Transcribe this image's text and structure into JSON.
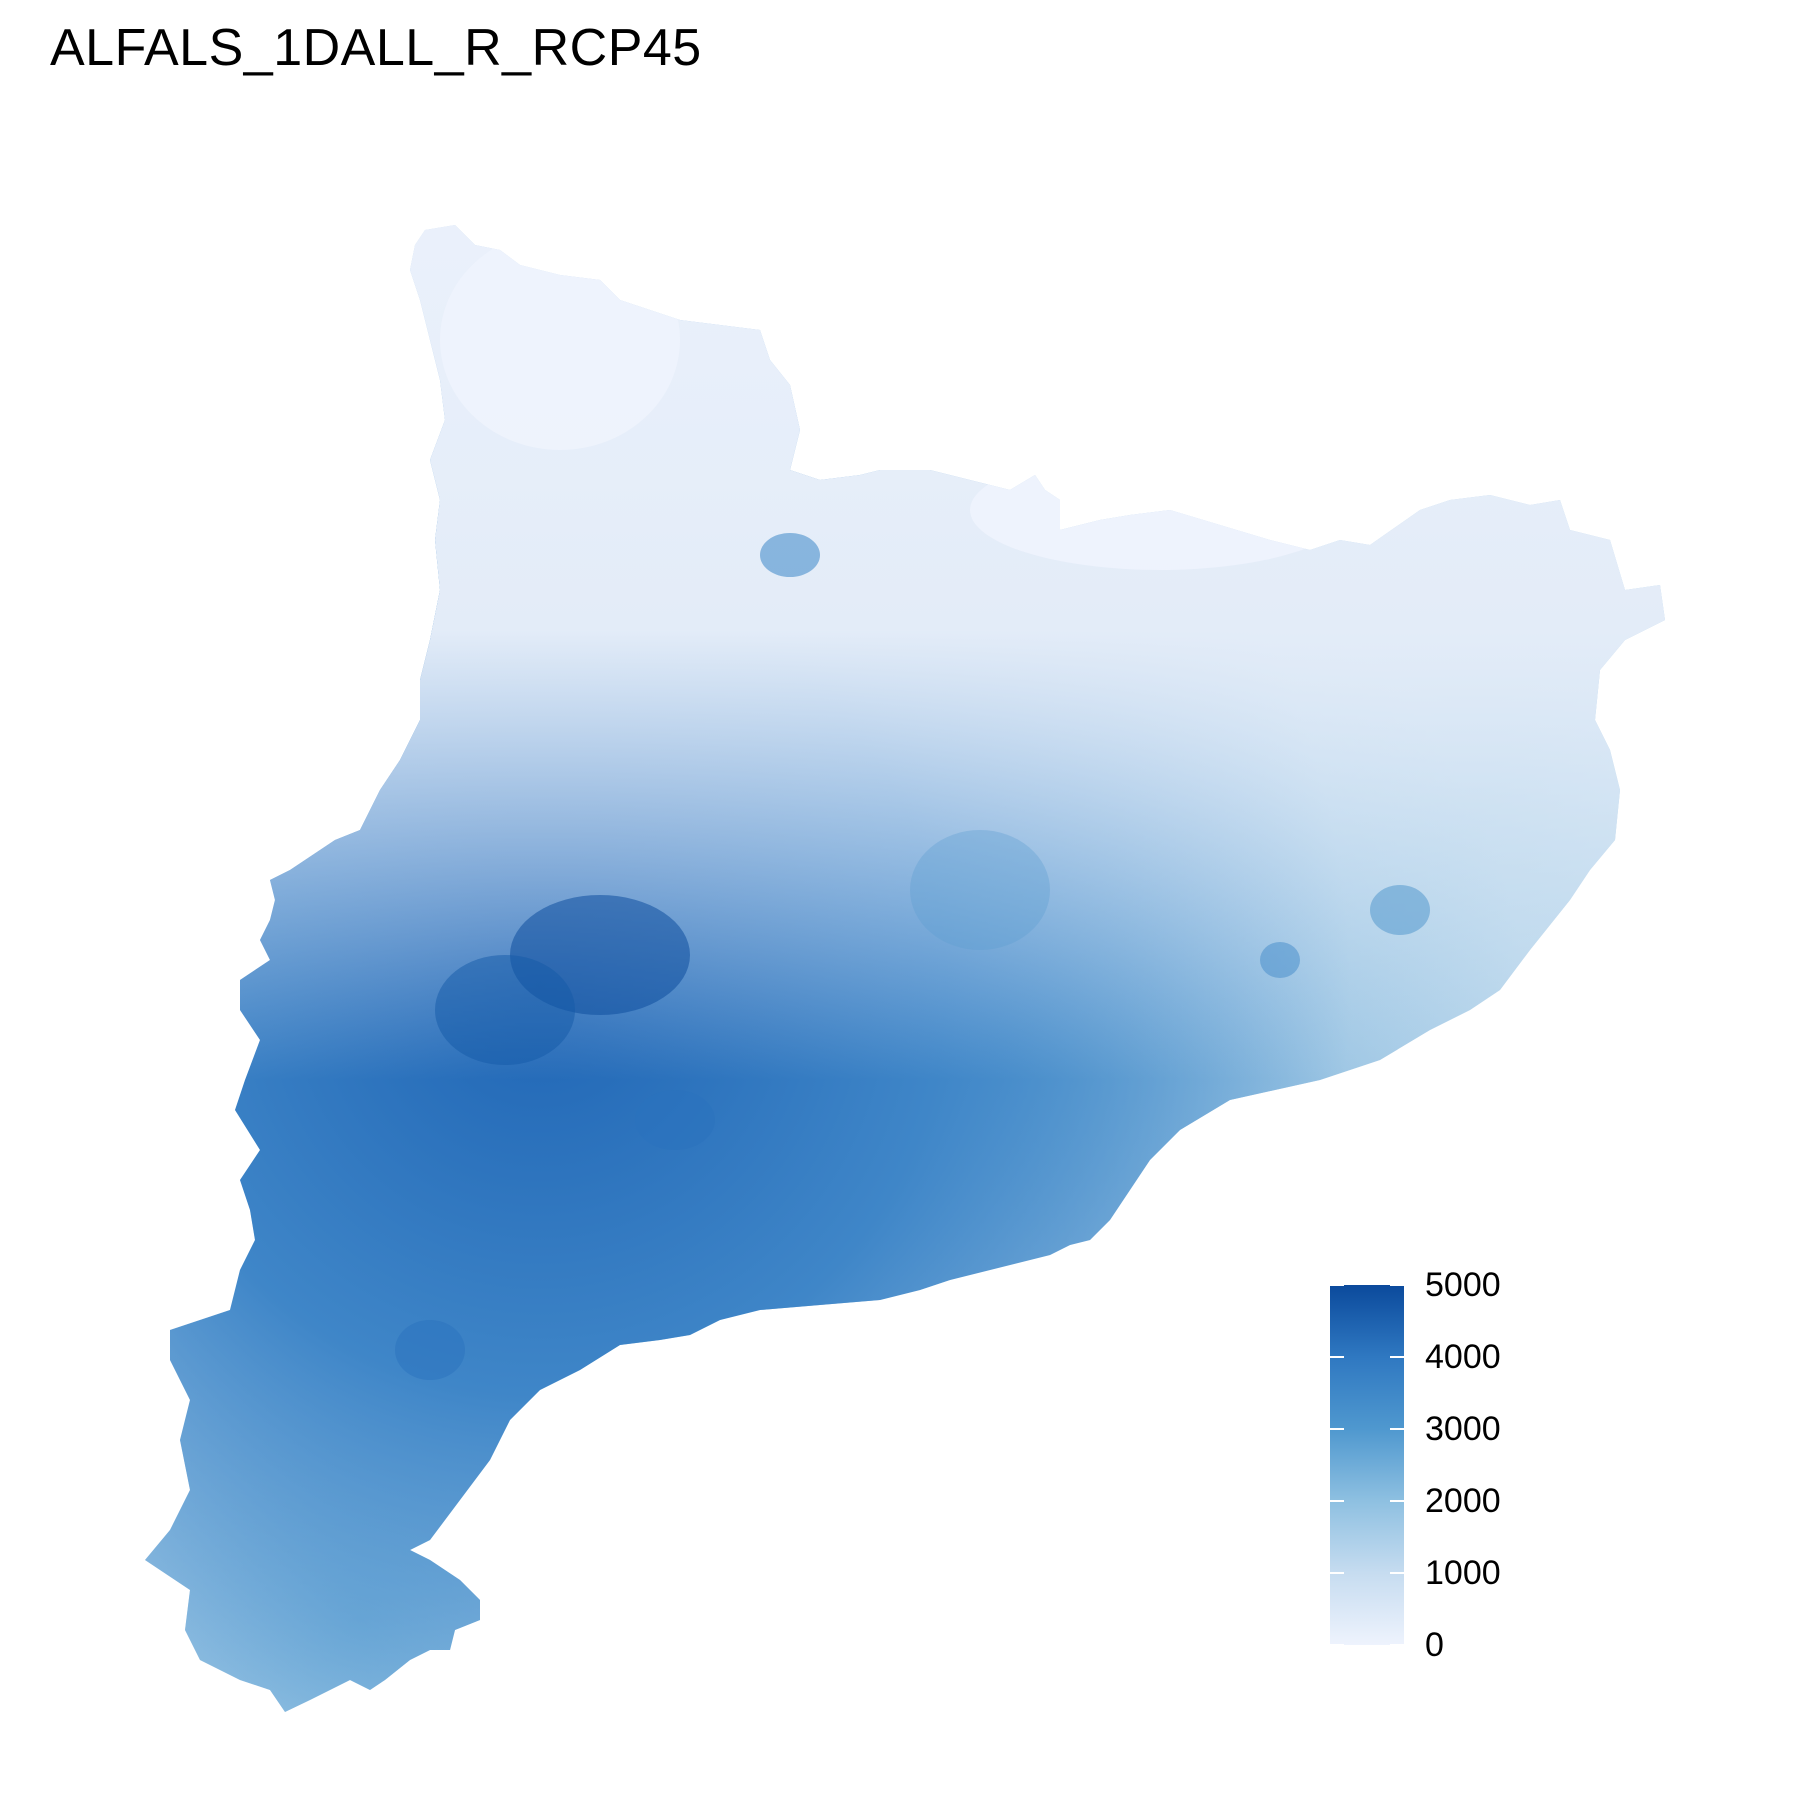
{
  "title": "ALFALS_1DALL_R_RCP45",
  "colors": {
    "scale_low": "#eef3fd",
    "scale_mid": "#7fb7dd",
    "scale_high": "#0b4a9c",
    "background": "#ffffff"
  },
  "legend": {
    "min": 0,
    "max": 5000,
    "ticks": [
      {
        "value": 5000,
        "label": "5000"
      },
      {
        "value": 4000,
        "label": "4000"
      },
      {
        "value": 3000,
        "label": "3000"
      },
      {
        "value": 2000,
        "label": "2000"
      },
      {
        "value": 1000,
        "label": "1000"
      },
      {
        "value": 0,
        "label": "0"
      }
    ]
  }
}
